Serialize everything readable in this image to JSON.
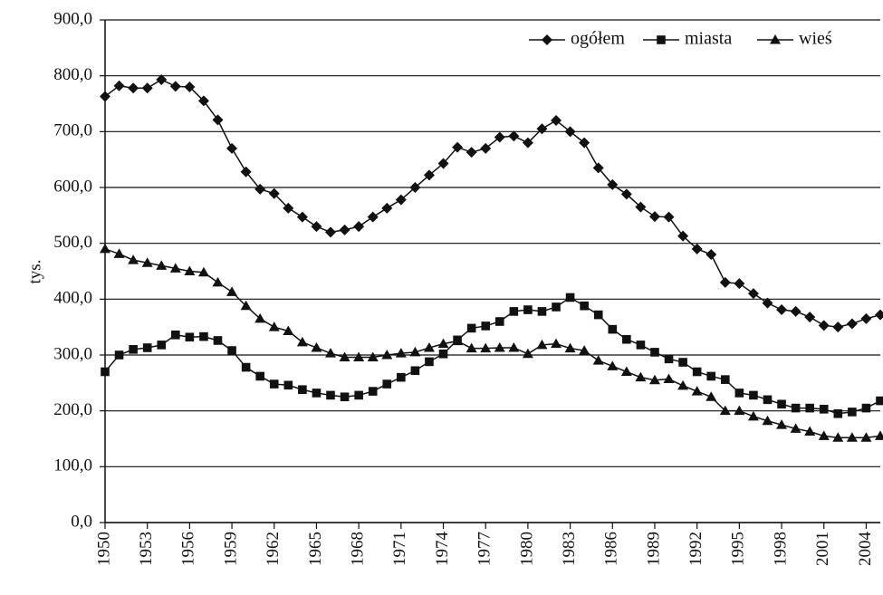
{
  "chart_data": {
    "type": "line",
    "y_label": "tys.",
    "x": [
      1950,
      1951,
      1952,
      1953,
      1954,
      1955,
      1956,
      1957,
      1958,
      1959,
      1960,
      1961,
      1962,
      1963,
      1964,
      1965,
      1966,
      1967,
      1968,
      1969,
      1970,
      1971,
      1972,
      1973,
      1974,
      1975,
      1976,
      1977,
      1978,
      1979,
      1980,
      1981,
      1982,
      1983,
      1984,
      1985,
      1986,
      1987,
      1988,
      1989,
      1990,
      1991,
      1992,
      1993,
      1994,
      1995,
      1996,
      1997,
      1998,
      1999,
      2000,
      2001,
      2002,
      2003,
      2004,
      2005
    ],
    "xlim": [
      1950,
      2005
    ],
    "xticks": [
      1950,
      1953,
      1956,
      1959,
      1962,
      1965,
      1968,
      1971,
      1974,
      1977,
      1980,
      1983,
      1986,
      1989,
      1992,
      1995,
      1998,
      2001,
      2004
    ],
    "ylim": [
      0,
      900
    ],
    "yticks": [
      {
        "value": 0,
        "label": "0,0"
      },
      {
        "value": 100,
        "label": "100,0"
      },
      {
        "value": 200,
        "label": "200,0"
      },
      {
        "value": 300,
        "label": "300,0"
      },
      {
        "value": 400,
        "label": "400,0"
      },
      {
        "value": 500,
        "label": "500,0"
      },
      {
        "value": 600,
        "label": "600,0"
      },
      {
        "value": 700,
        "label": "700,0"
      },
      {
        "value": 800,
        "label": "800,0"
      },
      {
        "value": 900,
        "label": "900,0"
      }
    ],
    "grid": true,
    "legend": "upper right",
    "series": [
      {
        "name": "ogółem",
        "color": "#111111",
        "marker": "diamond",
        "values": [
          763,
          782,
          778,
          778,
          793,
          781,
          780,
          755,
          721,
          670,
          628,
          597,
          589,
          563,
          547,
          530,
          520,
          524,
          530,
          547,
          563,
          578,
          600,
          622,
          643,
          672,
          663,
          670,
          690,
          692,
          680,
          705,
          720,
          700,
          680,
          635,
          605,
          588,
          565,
          548,
          547,
          513,
          490,
          480,
          430,
          428,
          410,
          393,
          381,
          378,
          368,
          353,
          350,
          356,
          365,
          372
        ]
      },
      {
        "name": "miasta",
        "color": "#111111",
        "marker": "square",
        "values": [
          270,
          300,
          310,
          313,
          318,
          336,
          332,
          333,
          326,
          308,
          278,
          262,
          248,
          246,
          238,
          232,
          228,
          225,
          228,
          235,
          248,
          260,
          272,
          288,
          302,
          327,
          348,
          352,
          360,
          378,
          381,
          378,
          386,
          403,
          388,
          372,
          346,
          328,
          318,
          305,
          293,
          287,
          270,
          262,
          256,
          232,
          228,
          220,
          212,
          205,
          205,
          203,
          195,
          198,
          205,
          218
        ]
      },
      {
        "name": "wieś",
        "color": "#111111",
        "marker": "triangle",
        "values": [
          490,
          481,
          470,
          465,
          460,
          455,
          450,
          448,
          430,
          413,
          388,
          365,
          350,
          343,
          323,
          313,
          303,
          296,
          296,
          296,
          300,
          303,
          305,
          313,
          320,
          325,
          312,
          312,
          313,
          313,
          302,
          318,
          320,
          312,
          308,
          290,
          280,
          270,
          260,
          255,
          257,
          245,
          235,
          225,
          200,
          200,
          190,
          182,
          175,
          168,
          163,
          155,
          152,
          152,
          152,
          155
        ]
      }
    ]
  }
}
